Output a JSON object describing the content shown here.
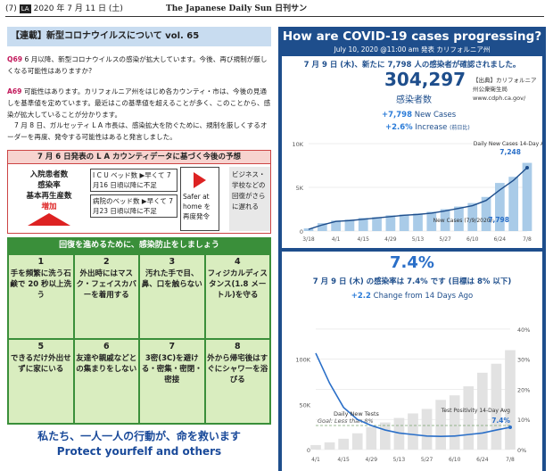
{
  "header": {
    "page": "(7)",
    "edition": "LA",
    "date": "2020 年 7 月 11 日 (土)",
    "paper": "The Japanese Daily Sun 日刊サン"
  },
  "left": {
    "title": "【連載】新型コロナウイルスについて vol. 65",
    "q_id": "Q69",
    "question": "6 月以降、新型コロナウイルスの感染が拡大しています。今後、再び規制が厳しくなる可能性はありますか?",
    "a_id": "A69",
    "answer_1": "可能性はあります。カリフォルニア州をはじめ各カウンティ・市は、今後の見通しを基準値を定めています。最近はこの基準値を超えることが多く、このことから、感染が拡大していることが分かります。",
    "answer_2": "7 月 8 日、ガルセッティ L A 市長は、感染拡大を防ぐために、規制を厳しくするオーダーを再度、発令する可能性はあると発言しました。",
    "forecast": {
      "title": "7 月 6 日発表の L A カウンティデータに基づく今後の予想",
      "left_lines": [
        "入院患者数",
        "感染率",
        "基本再生産数"
      ],
      "increase": "増加",
      "icu": "I C U ベッド数 ▶早くて 7月16 日頃以降に不足",
      "beds": "病院のベッド数 ▶早くて 7月23 日頃以降に不足",
      "safer": "Safer at home を再度発令",
      "business": "ビジネス・学校などの回復がさらに遅れる"
    },
    "prevention_title": "回復を進めるために、感染防止をしましょう",
    "tips": [
      {
        "n": "1",
        "t": "手を頻繁に洗う石鹸で 20 秒以上洗う"
      },
      {
        "n": "2",
        "t": "外出時にはマスク・フェイスカバーを着用する"
      },
      {
        "n": "3",
        "t": "汚れた手で目、鼻、口を触らない"
      },
      {
        "n": "4",
        "t": "フィジカルディスタンス(1.8 メートル)を守る"
      },
      {
        "n": "5",
        "t": "できるだけ外出せずに家にいる"
      },
      {
        "n": "6",
        "t": "友達や親戚などとの集まりをしない"
      },
      {
        "n": "7",
        "t": "3密(3C)を避ける・密集・密閉・密接"
      },
      {
        "n": "8",
        "t": "外から帰宅後はすぐにシャワーを浴びる"
      }
    ],
    "slogan_ja": "私たち、一人一人の行動が、命を救います",
    "slogan_en": "Protect yourfelf and others"
  },
  "right": {
    "title": "How are COVID-19 cases progressing?",
    "subtitle": "July 10, 2020 @11:00 am 発表 カリフォルニア州",
    "card1": {
      "heading": "7 月 9 日 (木)、新たに 7,798 人の感染者が確認されました。",
      "total": "304,297",
      "total_label": "感染者数",
      "source": "【出典】カリフォルニア州公衆衛生局 www.cdph.ca.gov/",
      "new_cases_value": "+7,798",
      "new_cases_label": "New Cases",
      "increase_value": "+2.6%",
      "increase_label": "Increase",
      "increase_note": "(前日比)"
    },
    "card2": {
      "rate": "7.4%",
      "heading": "7 月 9 日 (木) の感染率は 7.4% です (目標は 8% 以下)",
      "change_value": "+2.2",
      "change_label": "Change from 14 Days Ago"
    }
  },
  "chart_data": [
    {
      "type": "bar",
      "x": [
        "3/18",
        "3/25",
        "4/1",
        "4/8",
        "4/15",
        "4/22",
        "4/29",
        "5/6",
        "5/13",
        "5/20",
        "5/27",
        "6/3",
        "6/10",
        "6/17",
        "6/24",
        "7/1",
        "7/8"
      ],
      "series": [
        {
          "name": "Daily New Cases",
          "type": "bar",
          "values": [
            300,
            900,
            1200,
            1300,
            1500,
            1600,
            1800,
            1900,
            2000,
            2200,
            2500,
            2800,
            3200,
            3900,
            5500,
            6200,
            7798
          ]
        },
        {
          "name": "14-Day Avg",
          "type": "line",
          "values": [
            200,
            700,
            1100,
            1200,
            1350,
            1500,
            1650,
            1800,
            1900,
            2050,
            2300,
            2600,
            2900,
            3500,
            4700,
            5800,
            7248
          ]
        }
      ],
      "yticks": [
        "0",
        "5K",
        "10K"
      ],
      "ylim": [
        0,
        10000
      ],
      "xticks": [
        "3/18",
        "4/1",
        "4/15",
        "4/29",
        "5/13",
        "5/27",
        "6/10",
        "6/24",
        "7/8"
      ],
      "annotations": {
        "avg_label": "Daily New Cases 14-Day Avg",
        "avg_value": "7,248",
        "new_label": "New Cases (7/9/2020):",
        "new_value": "7,798"
      }
    },
    {
      "type": "line",
      "x": [
        "4/1",
        "4/8",
        "4/15",
        "4/22",
        "4/29",
        "5/6",
        "5/13",
        "5/20",
        "5/27",
        "6/3",
        "6/10",
        "6/17",
        "6/24",
        "7/1",
        "7/8"
      ],
      "series": [
        {
          "name": "Daily New Tests",
          "type": "bar",
          "values": [
            5000,
            8000,
            12000,
            18000,
            25000,
            30000,
            35000,
            40000,
            45000,
            55000,
            60000,
            70000,
            85000,
            95000,
            110000
          ]
        },
        {
          "name": "Test Positivity 14-Day Avg",
          "type": "line",
          "values": [
            32,
            22,
            14,
            10,
            8,
            6.5,
            5.5,
            5,
            4.5,
            4.4,
            4.5,
            5,
            5.5,
            6.5,
            7.4
          ]
        }
      ],
      "yticks_left": [
        "0",
        "50K",
        "100K"
      ],
      "yticks_right": [
        "0%",
        "10%",
        "20%",
        "30%",
        "40%"
      ],
      "goal": "Goal: Less than 8%",
      "goal_value": 8,
      "xticks": [
        "4/1",
        "4/15",
        "4/29",
        "5/13",
        "5/27",
        "6/10",
        "6/24",
        "7/8"
      ],
      "annotations": {
        "tests_label": "Daily New Tests",
        "pos_label": "Test Positivity 14-Day Avg",
        "pos_value": "7.4%"
      }
    }
  ]
}
